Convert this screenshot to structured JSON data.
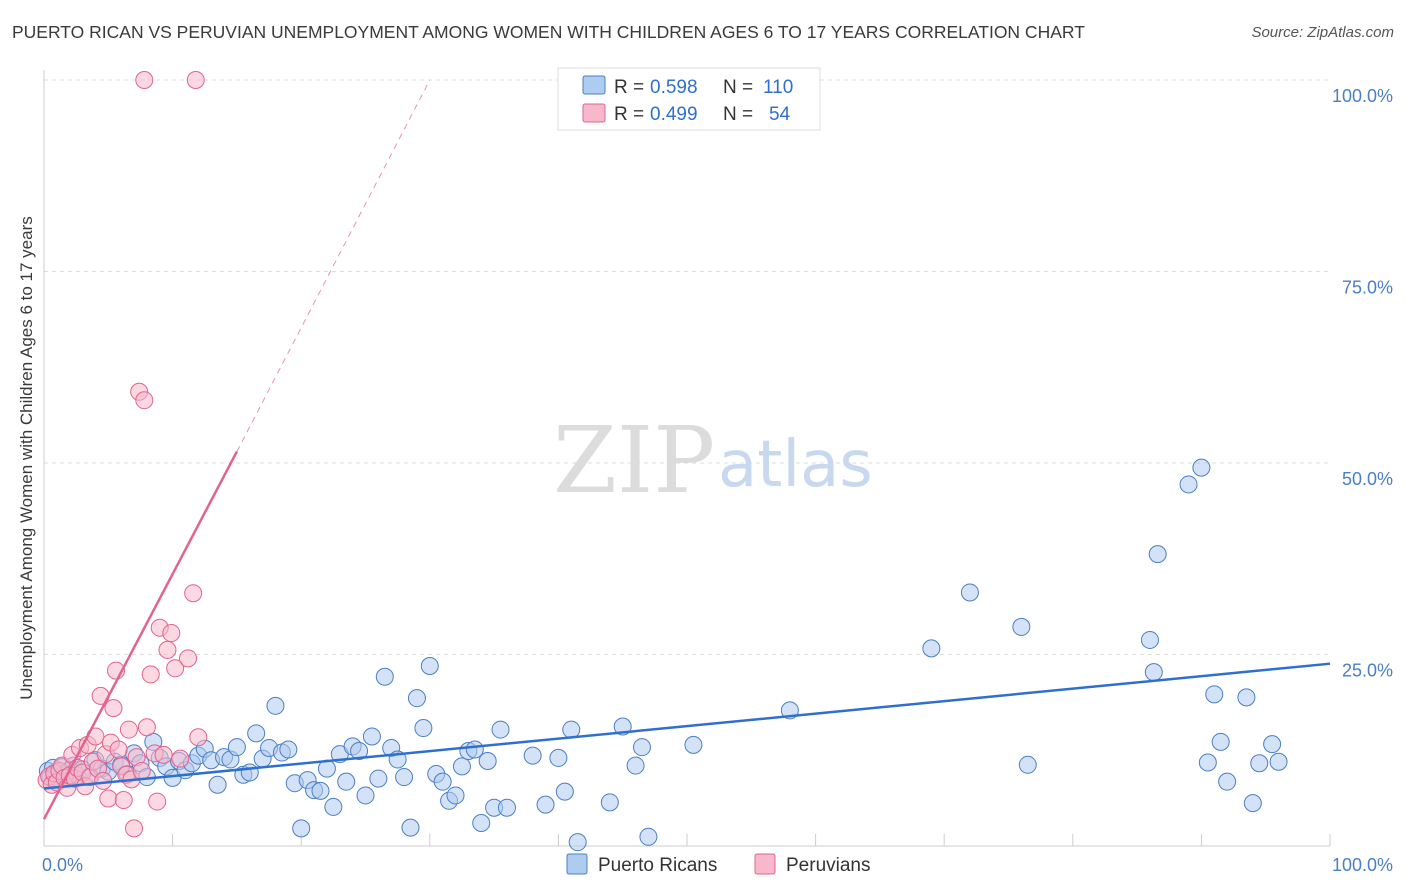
{
  "header": {
    "title": "PUERTO RICAN VS PERUVIAN UNEMPLOYMENT AMONG WOMEN WITH CHILDREN AGES 6 TO 17 YEARS CORRELATION CHART",
    "source": "Source: ZipAtlas.com"
  },
  "watermark": {
    "zip": "ZIP",
    "atlas": "atlas"
  },
  "colors": {
    "blue": "#4a7fc4",
    "blue_fill": "#aecbf0",
    "blue_line": "#2f6fcf",
    "pink": "#e0648f",
    "pink_fill": "#f7b8cb",
    "grid": "#dddddd"
  },
  "chart_data": {
    "type": "scatter",
    "title": "PUERTO RICAN VS PERUVIAN UNEMPLOYMENT AMONG WOMEN WITH CHILDREN AGES 6 TO 17 YEARS CORRELATION CHART",
    "xlabel": "",
    "ylabel": "Unemployment Among Women with Children Ages 6 to 17 years",
    "xlim": [
      0,
      100
    ],
    "ylim": [
      0,
      100
    ],
    "x_ticks": [
      "0.0%",
      "100.0%"
    ],
    "y_ticks": [
      {
        "value": 25,
        "label": "25.0%"
      },
      {
        "value": 50,
        "label": "50.0%"
      },
      {
        "value": 75,
        "label": "75.0%"
      },
      {
        "value": 100,
        "label": "100.0%"
      }
    ],
    "legend": [
      {
        "name": "Puerto Ricans",
        "R_label": "R =",
        "R": "0.598",
        "N_label": "N =",
        "N": "110"
      },
      {
        "name": "Peruvians",
        "R_label": "R =",
        "R": "0.499",
        "N_label": "N =",
        "N": "54"
      }
    ],
    "series": [
      {
        "name": "Puerto Ricans",
        "color": "#4a7fc4",
        "trend": {
          "x0": 0,
          "y0": 7.5,
          "x1": 100,
          "y1": 23.8
        },
        "points": [
          [
            0.3,
            9.8
          ],
          [
            0.5,
            8.9
          ],
          [
            0.7,
            10.2
          ],
          [
            0.8,
            9.1
          ],
          [
            1.0,
            9.6
          ],
          [
            1.2,
            8.7
          ],
          [
            1.4,
            10.3
          ],
          [
            1.6,
            9.4
          ],
          [
            1.8,
            8.8
          ],
          [
            2.0,
            9.9
          ],
          [
            2.3,
            10.5
          ],
          [
            2.6,
            9.2
          ],
          [
            3.0,
            10.0
          ],
          [
            3.5,
            9.0
          ],
          [
            4.0,
            11.2
          ],
          [
            4.5,
            10.1
          ],
          [
            5.0,
            9.7
          ],
          [
            5.5,
            11.0
          ],
          [
            6.0,
            10.6
          ],
          [
            6.5,
            9.4
          ],
          [
            7.0,
            12.1
          ],
          [
            7.5,
            10.8
          ],
          [
            8.0,
            9.0
          ],
          [
            8.5,
            13.6
          ],
          [
            9.0,
            11.5
          ],
          [
            9.5,
            10.4
          ],
          [
            10.0,
            8.9
          ],
          [
            10.5,
            11.1
          ],
          [
            11.0,
            9.9
          ],
          [
            11.5,
            10.8
          ],
          [
            12.0,
            11.8
          ],
          [
            12.5,
            12.7
          ],
          [
            13.0,
            11.2
          ],
          [
            13.5,
            8.0
          ],
          [
            14.0,
            11.6
          ],
          [
            14.5,
            11.3
          ],
          [
            15.0,
            12.9
          ],
          [
            15.5,
            9.3
          ],
          [
            16.0,
            9.6
          ],
          [
            16.5,
            14.7
          ],
          [
            17.0,
            11.4
          ],
          [
            17.5,
            12.8
          ],
          [
            18.0,
            18.3
          ],
          [
            18.5,
            12.2
          ],
          [
            19.0,
            12.6
          ],
          [
            19.5,
            8.2
          ],
          [
            20.0,
            2.3
          ],
          [
            20.5,
            8.6
          ],
          [
            21.0,
            7.3
          ],
          [
            21.5,
            7.2
          ],
          [
            22.0,
            10.1
          ],
          [
            22.5,
            5.1
          ],
          [
            23.0,
            12.0
          ],
          [
            23.5,
            8.4
          ],
          [
            24.0,
            13.0
          ],
          [
            24.5,
            12.4
          ],
          [
            25.0,
            6.6
          ],
          [
            25.5,
            14.3
          ],
          [
            26.0,
            8.8
          ],
          [
            26.5,
            22.1
          ],
          [
            27.0,
            12.8
          ],
          [
            27.5,
            11.3
          ],
          [
            28.0,
            9.0
          ],
          [
            28.5,
            2.4
          ],
          [
            29.0,
            19.3
          ],
          [
            29.5,
            15.4
          ],
          [
            30.0,
            23.5
          ],
          [
            30.5,
            9.4
          ],
          [
            31.0,
            8.4
          ],
          [
            31.5,
            5.9
          ],
          [
            32.0,
            6.6
          ],
          [
            32.5,
            10.4
          ],
          [
            33.0,
            12.4
          ],
          [
            33.5,
            12.6
          ],
          [
            34.0,
            3.0
          ],
          [
            34.5,
            11.1
          ],
          [
            35.0,
            5.0
          ],
          [
            35.5,
            15.2
          ],
          [
            36.0,
            5.0
          ],
          [
            38.0,
            11.8
          ],
          [
            39.0,
            5.4
          ],
          [
            40.0,
            11.5
          ],
          [
            40.5,
            7.1
          ],
          [
            41.0,
            15.2
          ],
          [
            41.5,
            0.5
          ],
          [
            44.0,
            5.7
          ],
          [
            45.0,
            15.6
          ],
          [
            46.0,
            10.5
          ],
          [
            46.5,
            12.9
          ],
          [
            47.0,
            1.2
          ],
          [
            50.5,
            13.2
          ],
          [
            58.0,
            17.7
          ],
          [
            69.0,
            25.8
          ],
          [
            72.0,
            33.1
          ],
          [
            76.0,
            28.6
          ],
          [
            76.5,
            10.6
          ],
          [
            86.0,
            26.9
          ],
          [
            86.3,
            22.7
          ],
          [
            86.6,
            38.1
          ],
          [
            89.0,
            47.2
          ],
          [
            90.0,
            49.4
          ],
          [
            90.5,
            10.9
          ],
          [
            91.0,
            19.8
          ],
          [
            91.5,
            13.6
          ],
          [
            92.0,
            8.4
          ],
          [
            93.5,
            19.4
          ],
          [
            94.0,
            5.6
          ],
          [
            94.5,
            10.8
          ],
          [
            95.5,
            13.3
          ],
          [
            96.0,
            11.0
          ]
        ]
      },
      {
        "name": "Peruvians",
        "color": "#e0648f",
        "trend": {
          "x0": 0,
          "y0": 3.5,
          "x1": 15,
          "y1": 51.5
        },
        "trend_extension": {
          "x0": 15,
          "y0": 51.5,
          "x1": 30,
          "y1": 100
        },
        "points": [
          [
            0.2,
            8.6
          ],
          [
            0.4,
            9.1
          ],
          [
            0.6,
            8.0
          ],
          [
            0.8,
            9.5
          ],
          [
            1.0,
            8.3
          ],
          [
            1.2,
            9.8
          ],
          [
            1.4,
            10.5
          ],
          [
            1.6,
            8.9
          ],
          [
            1.8,
            7.6
          ],
          [
            2.0,
            9.2
          ],
          [
            2.2,
            11.9
          ],
          [
            2.4,
            8.8
          ],
          [
            2.6,
            10.2
          ],
          [
            2.8,
            12.8
          ],
          [
            3.0,
            9.6
          ],
          [
            3.2,
            7.8
          ],
          [
            3.4,
            13.2
          ],
          [
            3.6,
            9.0
          ],
          [
            3.8,
            11.0
          ],
          [
            4.0,
            14.3
          ],
          [
            4.2,
            10.1
          ],
          [
            4.4,
            19.6
          ],
          [
            4.6,
            8.5
          ],
          [
            4.8,
            12.0
          ],
          [
            5.0,
            6.2
          ],
          [
            5.2,
            13.5
          ],
          [
            5.4,
            18.0
          ],
          [
            5.6,
            22.9
          ],
          [
            5.8,
            12.6
          ],
          [
            6.0,
            10.4
          ],
          [
            6.2,
            6.0
          ],
          [
            6.4,
            9.3
          ],
          [
            6.6,
            15.2
          ],
          [
            6.8,
            8.7
          ],
          [
            7.0,
            2.3
          ],
          [
            7.2,
            11.6
          ],
          [
            7.4,
            59.3
          ],
          [
            7.6,
            9.8
          ],
          [
            7.8,
            58.2
          ],
          [
            8.0,
            15.5
          ],
          [
            8.3,
            22.4
          ],
          [
            8.6,
            12.1
          ],
          [
            8.8,
            5.8
          ],
          [
            9.0,
            28.5
          ],
          [
            9.3,
            11.9
          ],
          [
            9.6,
            25.6
          ],
          [
            9.9,
            27.8
          ],
          [
            10.2,
            23.2
          ],
          [
            10.6,
            11.4
          ],
          [
            11.2,
            24.5
          ],
          [
            11.6,
            33.0
          ],
          [
            12.0,
            14.2
          ],
          [
            7.8,
            100
          ],
          [
            11.8,
            100
          ]
        ]
      }
    ]
  }
}
